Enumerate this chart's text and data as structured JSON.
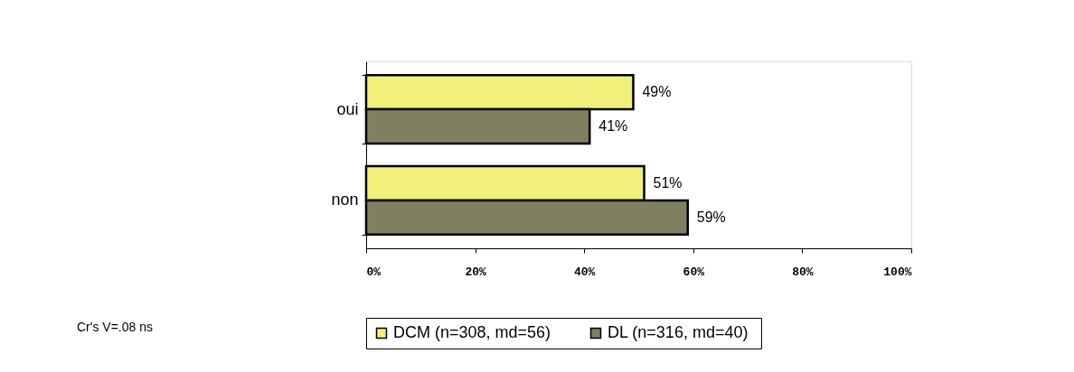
{
  "chart_data": {
    "type": "bar",
    "orientation": "horizontal",
    "categories": [
      "oui",
      "non"
    ],
    "series": [
      {
        "name": "DCM (n=308, md=56)",
        "color": "#f0f07a",
        "values": [
          49,
          51
        ],
        "value_labels": [
          "49%",
          "51%"
        ]
      },
      {
        "name": "DL  (n=316, md=40)",
        "color": "#808060",
        "values": [
          41,
          59
        ],
        "value_labels": [
          "41%",
          "59%"
        ]
      }
    ],
    "xlim": [
      0,
      100
    ],
    "xticks": [
      {
        "value": 0,
        "label": "0%"
      },
      {
        "value": 20,
        "label": "20%"
      },
      {
        "value": 40,
        "label": "40%"
      },
      {
        "value": 60,
        "label": "60%"
      },
      {
        "value": 80,
        "label": "80%"
      },
      {
        "value": 100,
        "label": "100%"
      }
    ],
    "grid": false,
    "legend": "bottom",
    "annotations": [
      "Cr's V=.08 ns"
    ]
  }
}
